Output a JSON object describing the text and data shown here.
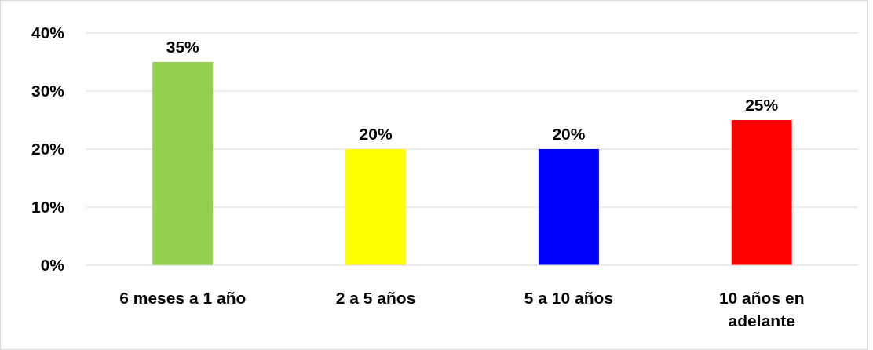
{
  "chart_data": {
    "type": "bar",
    "categories": [
      "6 meses a 1 año",
      "2 a 5 años",
      "5 a 10 años",
      "10 años en adelante"
    ],
    "values": [
      35,
      20,
      20,
      25
    ],
    "colors": [
      "#92d050",
      "#ffff00",
      "#0000ff",
      "#ff0000"
    ],
    "value_labels": [
      "35%",
      "20%",
      "20%",
      "25%"
    ],
    "ylim": [
      0,
      40
    ],
    "yticks": [
      {
        "value": 0,
        "label": "0%"
      },
      {
        "value": 10,
        "label": "10%"
      },
      {
        "value": 20,
        "label": "20%"
      },
      {
        "value": 30,
        "label": "30%"
      },
      {
        "value": 40,
        "label": "40%"
      }
    ],
    "grid": "y"
  }
}
